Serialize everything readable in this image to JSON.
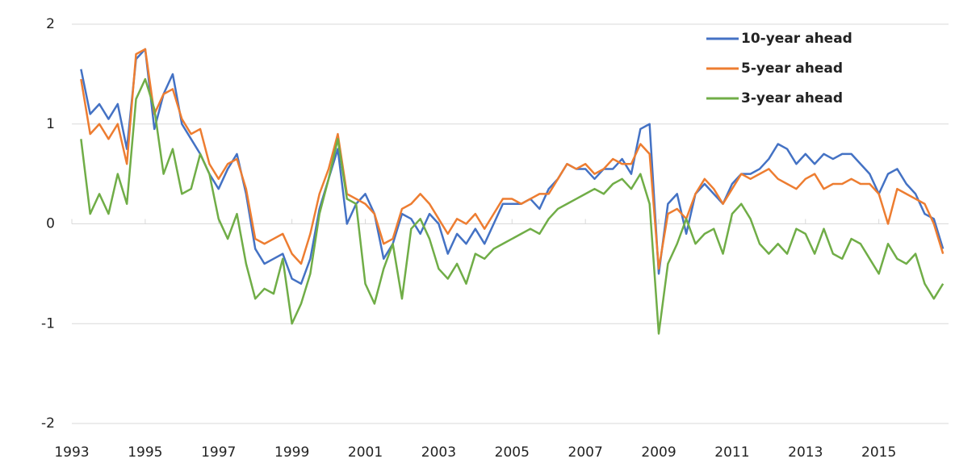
{
  "chart_data": {
    "type": "line",
    "x": [
      1993.25,
      1993.5,
      1993.75,
      1994,
      1994.25,
      1994.5,
      1994.75,
      1995,
      1995.25,
      1995.5,
      1995.75,
      1996,
      1996.25,
      1996.5,
      1996.75,
      1997,
      1997.25,
      1997.5,
      1997.75,
      1998,
      1998.25,
      1998.5,
      1998.75,
      1999,
      1999.25,
      1999.5,
      1999.75,
      2000,
      2000.25,
      2000.5,
      2000.75,
      2001,
      2001.25,
      2001.5,
      2001.75,
      2002,
      2002.25,
      2002.5,
      2002.75,
      2003,
      2003.25,
      2003.5,
      2003.75,
      2004,
      2004.25,
      2004.5,
      2004.75,
      2005,
      2005.25,
      2005.5,
      2005.75,
      2006,
      2006.25,
      2006.5,
      2006.75,
      2007,
      2007.25,
      2007.5,
      2007.75,
      2008,
      2008.25,
      2008.5,
      2008.75,
      2009,
      2009.25,
      2009.5,
      2009.75,
      2010,
      2010.25,
      2010.5,
      2010.75,
      2011,
      2011.25,
      2011.5,
      2011.75,
      2012,
      2012.25,
      2012.5,
      2012.75,
      2013,
      2013.25,
      2013.5,
      2013.75,
      2014,
      2014.25,
      2014.5,
      2014.75,
      2015,
      2015.25,
      2015.5,
      2015.75,
      2016,
      2016.25,
      2016.5,
      2016.75
    ],
    "series": [
      {
        "name": "10-year ahead",
        "color": "#4472c4",
        "values": [
          1.55,
          1.1,
          1.2,
          1.05,
          1.2,
          0.75,
          1.65,
          1.75,
          0.95,
          1.3,
          1.5,
          1.0,
          0.85,
          0.7,
          0.5,
          0.35,
          0.55,
          0.7,
          0.3,
          -0.25,
          -0.4,
          -0.35,
          -0.3,
          -0.55,
          -0.6,
          -0.35,
          0.15,
          0.45,
          0.75,
          0.0,
          0.2,
          0.3,
          0.1,
          -0.35,
          -0.2,
          0.1,
          0.05,
          -0.1,
          0.1,
          0.0,
          -0.3,
          -0.1,
          -0.2,
          -0.05,
          -0.2,
          0.0,
          0.2,
          0.2,
          0.2,
          0.25,
          0.15,
          0.35,
          0.45,
          0.6,
          0.55,
          0.55,
          0.45,
          0.55,
          0.55,
          0.65,
          0.5,
          0.95,
          1.0,
          -0.5,
          0.2,
          0.3,
          -0.1,
          0.3,
          0.4,
          0.3,
          0.2,
          0.4,
          0.5,
          0.5,
          0.55,
          0.65,
          0.8,
          0.75,
          0.6,
          0.7,
          0.6,
          0.7,
          0.65,
          0.7,
          0.7,
          0.6,
          0.5,
          0.3,
          0.5,
          0.55,
          0.4,
          0.3,
          0.1,
          0.05,
          -0.25
        ]
      },
      {
        "name": "5-year ahead",
        "color": "#ed7d31",
        "values": [
          1.45,
          0.9,
          1.0,
          0.85,
          1.0,
          0.6,
          1.7,
          1.75,
          1.1,
          1.3,
          1.35,
          1.05,
          0.9,
          0.95,
          0.6,
          0.45,
          0.6,
          0.65,
          0.35,
          -0.15,
          -0.2,
          -0.15,
          -0.1,
          -0.3,
          -0.4,
          -0.1,
          0.3,
          0.55,
          0.9,
          0.3,
          0.25,
          0.2,
          0.1,
          -0.2,
          -0.15,
          0.15,
          0.2,
          0.3,
          0.2,
          0.05,
          -0.1,
          0.05,
          0.0,
          0.1,
          -0.05,
          0.1,
          0.25,
          0.25,
          0.2,
          0.25,
          0.3,
          0.3,
          0.45,
          0.6,
          0.55,
          0.6,
          0.5,
          0.55,
          0.65,
          0.6,
          0.6,
          0.8,
          0.7,
          -0.45,
          0.1,
          0.15,
          0.05,
          0.3,
          0.45,
          0.35,
          0.2,
          0.35,
          0.5,
          0.45,
          0.5,
          0.55,
          0.45,
          0.4,
          0.35,
          0.45,
          0.5,
          0.35,
          0.4,
          0.4,
          0.45,
          0.4,
          0.4,
          0.3,
          0.0,
          0.35,
          0.3,
          0.25,
          0.2,
          0.0,
          -0.3
        ]
      },
      {
        "name": "3-year ahead",
        "color": "#70ad47",
        "values": [
          0.85,
          0.1,
          0.3,
          0.1,
          0.5,
          0.2,
          1.25,
          1.45,
          1.15,
          0.5,
          0.75,
          0.3,
          0.35,
          0.7,
          0.5,
          0.05,
          -0.15,
          0.1,
          -0.4,
          -0.75,
          -0.65,
          -0.7,
          -0.35,
          -1.0,
          -0.8,
          -0.5,
          0.1,
          0.45,
          0.85,
          0.25,
          0.2,
          -0.6,
          -0.8,
          -0.45,
          -0.2,
          -0.75,
          -0.05,
          0.05,
          -0.15,
          -0.45,
          -0.55,
          -0.4,
          -0.6,
          -0.3,
          -0.35,
          -0.25,
          -0.2,
          -0.15,
          -0.1,
          -0.05,
          -0.1,
          0.05,
          0.15,
          0.2,
          0.25,
          0.3,
          0.35,
          0.3,
          0.4,
          0.45,
          0.35,
          0.5,
          0.2,
          -1.1,
          -0.4,
          -0.2,
          0.05,
          -0.2,
          -0.1,
          -0.05,
          -0.3,
          0.1,
          0.2,
          0.05,
          -0.2,
          -0.3,
          -0.2,
          -0.3,
          -0.05,
          -0.1,
          -0.3,
          -0.05,
          -0.3,
          -0.35,
          -0.15,
          -0.2,
          -0.35,
          -0.5,
          -0.2,
          -0.35,
          -0.4,
          -0.3,
          -0.6,
          -0.75,
          -0.6
        ]
      }
    ],
    "xlim": [
      1993,
      2016.9
    ],
    "xticks": [
      1993,
      1995,
      1997,
      1999,
      2001,
      2003,
      2005,
      2007,
      2009,
      2011,
      2013,
      2015
    ],
    "ylim": [
      -2,
      2
    ],
    "yticks": [
      -2,
      -1,
      0,
      1,
      2
    ],
    "grid": true,
    "legend": "upper right"
  }
}
